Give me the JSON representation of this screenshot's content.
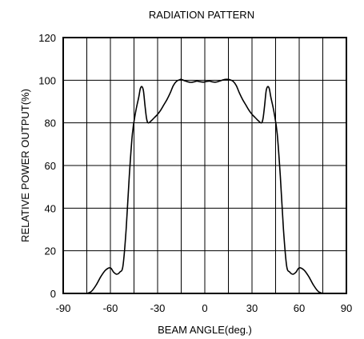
{
  "chart_data": {
    "type": "line",
    "title": "RADIATION PATTERN",
    "xlabel": "BEAM ANGLE(deg.)",
    "ylabel": "RELATIVE POWER OUTPUT(%)",
    "xlim": [
      -90,
      90
    ],
    "ylim": [
      0,
      120
    ],
    "xticks": [
      -90,
      -60,
      -30,
      0,
      30,
      60,
      90
    ],
    "yticks": [
      0,
      20,
      40,
      60,
      80,
      100,
      120
    ],
    "grid": true,
    "series": [
      {
        "x": [
          -75,
          -72,
          -69,
          -66,
          -63,
          -60,
          -58,
          -56,
          -54,
          -52,
          -50,
          -48,
          -46,
          -44,
          -42,
          -41,
          -40,
          -39,
          -38,
          -37,
          -36,
          -34,
          -32,
          -30,
          -28,
          -26,
          -24,
          -22,
          -20,
          -18,
          -16,
          -15,
          -13,
          -11,
          -9,
          -7,
          -5,
          -3,
          -1,
          0,
          1,
          3,
          5,
          7,
          9,
          11,
          13,
          15,
          16,
          18,
          20,
          22,
          24,
          26,
          28,
          30,
          32,
          34,
          36,
          37,
          38,
          39,
          40,
          41,
          42,
          44,
          46,
          48,
          50,
          52,
          54,
          56,
          58,
          60,
          63,
          66,
          69,
          72,
          75
        ],
        "values": [
          0,
          1,
          4,
          8,
          11,
          12,
          10,
          9,
          10,
          13,
          30,
          55,
          75,
          85,
          92,
          96,
          97,
          95,
          88,
          82,
          80,
          81,
          82.5,
          84,
          86,
          88.5,
          91,
          94,
          97.5,
          99.5,
          100.2,
          100.4,
          99.8,
          99.3,
          99,
          99.2,
          99.6,
          99.3,
          99.1,
          99.2,
          99.4,
          99.6,
          99.2,
          99.1,
          99.5,
          100,
          100.4,
          100.4,
          100.2,
          99.5,
          97.5,
          94,
          91,
          88.5,
          86,
          84,
          82.5,
          81,
          80,
          82,
          88,
          95,
          97,
          96,
          92,
          85,
          75,
          55,
          30,
          13,
          10,
          9,
          10,
          12,
          11,
          8,
          4,
          1,
          0
        ]
      }
    ]
  }
}
